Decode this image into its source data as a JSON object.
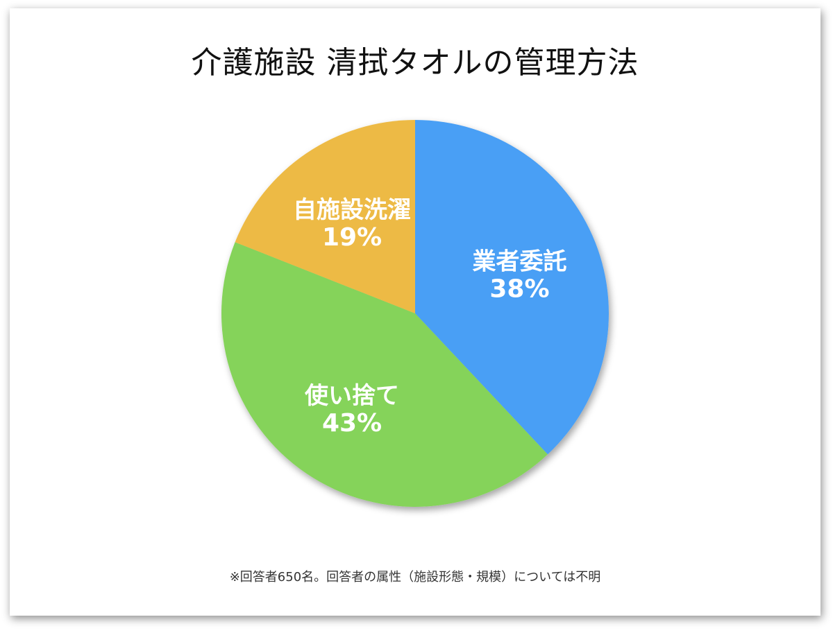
{
  "chart_data": {
    "type": "pie",
    "title": "介護施設 清拭タオルの管理方法",
    "categories": [
      "業者委託",
      "使い捨て",
      "自施設洗濯"
    ],
    "values": [
      38,
      43,
      19
    ],
    "value_labels": [
      "38%",
      "43%",
      "19%"
    ],
    "unit": "%",
    "start": "12 o'clock",
    "direction": "clockwise",
    "legend": "none",
    "colors": [
      "#4A9FF5",
      "#85D35A",
      "#EDBA44"
    ],
    "footnote": "※回答者650名。回答者の属性（施設形態・規模）については不明"
  }
}
